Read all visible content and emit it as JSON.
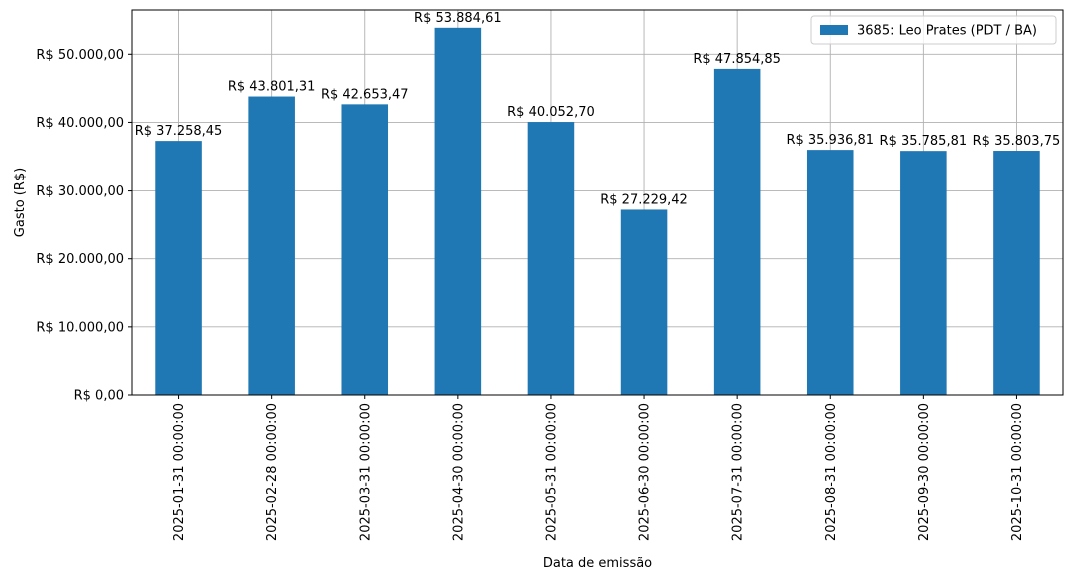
{
  "chart_data": {
    "type": "bar",
    "xlabel": "Data de emissão",
    "ylabel": "Gasto (R$)",
    "ylim": [
      0,
      56500
    ],
    "grid": true,
    "legend_position": "top-right",
    "categories": [
      "2025-01-31 00:00:00",
      "2025-02-28 00:00:00",
      "2025-03-31 00:00:00",
      "2025-04-30 00:00:00",
      "2025-05-31 00:00:00",
      "2025-06-30 00:00:00",
      "2025-07-31 00:00:00",
      "2025-08-31 00:00:00",
      "2025-09-30 00:00:00",
      "2025-10-31 00:00:00"
    ],
    "series": [
      {
        "name": "3685: Leo Prates (PDT / BA)",
        "color": "#1f77b4",
        "values": [
          37258.45,
          43801.31,
          42653.47,
          53884.61,
          40052.7,
          27229.42,
          47854.85,
          35936.81,
          35785.81,
          35803.75
        ],
        "data_labels": [
          "R$ 37.258,45",
          "R$ 43.801,31",
          "R$ 42.653,47",
          "R$ 53.884,61",
          "R$ 40.052,70",
          "R$ 27.229,42",
          "R$ 47.854,85",
          "R$ 35.936,81",
          "R$ 35.785,81",
          "R$ 35.803,75"
        ]
      }
    ],
    "y_ticks": [
      0,
      10000,
      20000,
      30000,
      40000,
      50000
    ],
    "y_tick_labels": [
      "R$ 0,00",
      "R$ 10.000,00",
      "R$ 20.000,00",
      "R$ 30.000,00",
      "R$ 40.000,00",
      "R$ 50.000,00"
    ]
  }
}
